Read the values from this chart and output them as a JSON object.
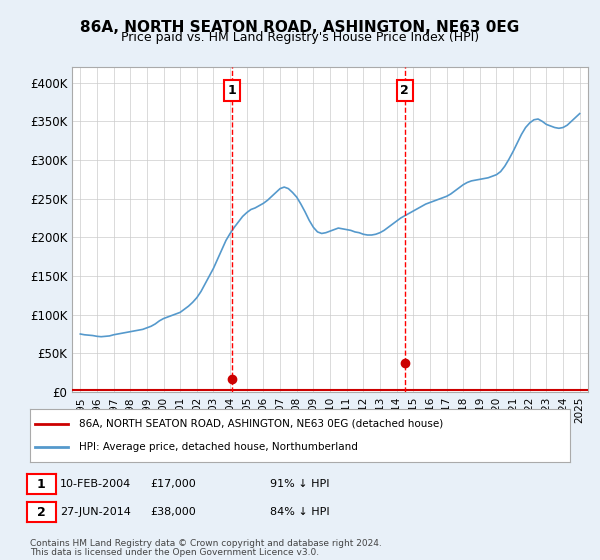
{
  "title": "86A, NORTH SEATON ROAD, ASHINGTON, NE63 0EG",
  "subtitle": "Price paid vs. HM Land Registry's House Price Index (HPI)",
  "legend_line1": "86A, NORTH SEATON ROAD, ASHINGTON, NE63 0EG (detached house)",
  "legend_line2": "HPI: Average price, detached house, Northumberland",
  "sale1_label": "1",
  "sale1_date_str": "10-FEB-2004",
  "sale1_price": 17000,
  "sale1_pct": "91% ↓ HPI",
  "sale1_year": 2004.11,
  "sale2_label": "2",
  "sale2_date_str": "27-JUN-2014",
  "sale2_price": 38000,
  "sale2_pct": "84% ↓ HPI",
  "sale2_year": 2014.49,
  "footnote1": "Contains HM Land Registry data © Crown copyright and database right 2024.",
  "footnote2": "This data is licensed under the Open Government Licence v3.0.",
  "hpi_years": [
    1995.0,
    1995.25,
    1995.5,
    1995.75,
    1996.0,
    1996.25,
    1996.5,
    1996.75,
    1997.0,
    1997.25,
    1997.5,
    1997.75,
    1998.0,
    1998.25,
    1998.5,
    1998.75,
    1999.0,
    1999.25,
    1999.5,
    1999.75,
    2000.0,
    2000.25,
    2000.5,
    2000.75,
    2001.0,
    2001.25,
    2001.5,
    2001.75,
    2002.0,
    2002.25,
    2002.5,
    2002.75,
    2003.0,
    2003.25,
    2003.5,
    2003.75,
    2004.0,
    2004.25,
    2004.5,
    2004.75,
    2005.0,
    2005.25,
    2005.5,
    2005.75,
    2006.0,
    2006.25,
    2006.5,
    2006.75,
    2007.0,
    2007.25,
    2007.5,
    2007.75,
    2008.0,
    2008.25,
    2008.5,
    2008.75,
    2009.0,
    2009.25,
    2009.5,
    2009.75,
    2010.0,
    2010.25,
    2010.5,
    2010.75,
    2011.0,
    2011.25,
    2011.5,
    2011.75,
    2012.0,
    2012.25,
    2012.5,
    2012.75,
    2013.0,
    2013.25,
    2013.5,
    2013.75,
    2014.0,
    2014.25,
    2014.5,
    2014.75,
    2015.0,
    2015.25,
    2015.5,
    2015.75,
    2016.0,
    2016.25,
    2016.5,
    2016.75,
    2017.0,
    2017.25,
    2017.5,
    2017.75,
    2018.0,
    2018.25,
    2018.5,
    2018.75,
    2019.0,
    2019.25,
    2019.5,
    2019.75,
    2020.0,
    2020.25,
    2020.5,
    2020.75,
    2021.0,
    2021.25,
    2021.5,
    2021.75,
    2022.0,
    2022.25,
    2022.5,
    2022.75,
    2023.0,
    2023.25,
    2023.5,
    2023.75,
    2024.0,
    2024.25,
    2024.5,
    2024.75,
    2025.0
  ],
  "hpi_values": [
    75000,
    74000,
    73500,
    73000,
    72000,
    71500,
    72000,
    72500,
    74000,
    75000,
    76000,
    77000,
    78000,
    79000,
    80000,
    81000,
    83000,
    85000,
    88000,
    92000,
    95000,
    97000,
    99000,
    101000,
    103000,
    107000,
    111000,
    116000,
    122000,
    130000,
    140000,
    150000,
    160000,
    172000,
    184000,
    196000,
    205000,
    213000,
    220000,
    227000,
    232000,
    236000,
    238000,
    241000,
    244000,
    248000,
    253000,
    258000,
    263000,
    265000,
    263000,
    258000,
    252000,
    243000,
    233000,
    222000,
    213000,
    207000,
    205000,
    206000,
    208000,
    210000,
    212000,
    211000,
    210000,
    209000,
    207000,
    206000,
    204000,
    203000,
    203000,
    204000,
    206000,
    209000,
    213000,
    217000,
    221000,
    225000,
    228000,
    231000,
    234000,
    237000,
    240000,
    243000,
    245000,
    247000,
    249000,
    251000,
    253000,
    256000,
    260000,
    264000,
    268000,
    271000,
    273000,
    274000,
    275000,
    276000,
    277000,
    279000,
    281000,
    285000,
    292000,
    301000,
    311000,
    322000,
    333000,
    342000,
    348000,
    352000,
    353000,
    350000,
    346000,
    344000,
    342000,
    341000,
    342000,
    345000,
    350000,
    355000,
    360000
  ],
  "red_line_color": "#cc0000",
  "blue_line_color": "#5599cc",
  "vline_color": "#ff0000",
  "bg_color": "#e8f0f8",
  "plot_bg_color": "#ffffff",
  "grid_color": "#cccccc",
  "xlim": [
    1994.5,
    2025.5
  ],
  "ylim": [
    0,
    420000
  ],
  "yticks": [
    0,
    50000,
    100000,
    150000,
    200000,
    250000,
    300000,
    350000,
    400000
  ],
  "ytick_labels": [
    "£0",
    "£50K",
    "£100K",
    "£150K",
    "£200K",
    "£250K",
    "£300K",
    "£350K",
    "£400K"
  ],
  "xticks": [
    1995,
    1996,
    1997,
    1998,
    1999,
    2000,
    2001,
    2002,
    2003,
    2004,
    2005,
    2006,
    2007,
    2008,
    2009,
    2010,
    2011,
    2012,
    2013,
    2014,
    2015,
    2016,
    2017,
    2018,
    2019,
    2020,
    2021,
    2022,
    2023,
    2024,
    2025
  ]
}
